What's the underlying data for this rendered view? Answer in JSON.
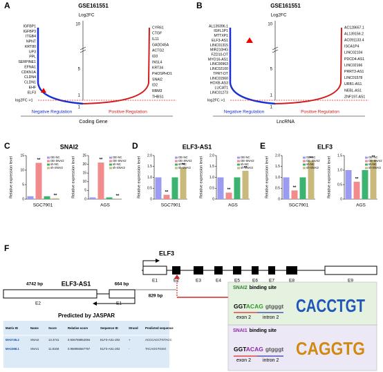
{
  "rank_panels": [
    {
      "letter": "A",
      "title": "GSE161551",
      "axis_label": "Log2FC",
      "ticks": [
        "10",
        "5",
        "1",
        "1"
      ],
      "threshold": "log2FC >1",
      "left_genes": [
        "IGFBP1",
        "IGFBP3",
        "ITGB4",
        "NPNT",
        "KRT80",
        "UP3",
        "PPL",
        "SERPINE1",
        "EFNA1",
        "CDKN1A",
        "CLDN4",
        "CLDN1",
        "EHF",
        "ELF3"
      ],
      "right_genes": [
        "CYR61",
        "CTGF",
        "IL11",
        "GADD45A",
        "ACTG2",
        "ID3",
        "INSL4",
        "KRT34",
        "PHOSPHO1",
        "SNAI2",
        "ID2",
        "RBM3",
        "THBS1"
      ],
      "negative": "Negative Regulation",
      "positive": "Positive Regulation",
      "xlabel": "Coding Gene"
    },
    {
      "letter": "B",
      "title": "GSE161551",
      "axis_label": "Log2FC",
      "ticks": [
        "10",
        "5",
        "1",
        "1"
      ],
      "threshold": "log2FC >1",
      "left_genes": [
        "AL139396.1",
        "IGFL1P1",
        "MTTXP1",
        "ELF3-AS1",
        "LINC01315",
        "MIR210HG",
        "FZD10-DT",
        "MYO16-AS1",
        "LINC00963",
        "LINC02100",
        "TPRT-DT",
        "LINC01560",
        "HOXB-AS3",
        "LUCAT1",
        "LINC01273"
      ],
      "right_genes": [
        "AC128657.1",
        "AL139156.2",
        "AC091133.4",
        "ISCA1P4",
        "LINC02104",
        "PDCD4-AS1",
        "LINC02166",
        "PRRT3-AS1",
        "LINC01578",
        "URB1-AS1",
        "NEBL-AS1",
        "ZNF197-AS1"
      ],
      "negative": "Negative Regulation",
      "positive": "Positive Regulation",
      "xlabel": "LncRNA"
    }
  ],
  "chart_data": [
    {
      "type": "bar",
      "panel_letter": "C",
      "title": "SNAI2",
      "ylabel": "Relative expression level",
      "series": [
        {
          "name": "OE-NC",
          "color": "#9b9bf2"
        },
        {
          "name": "OE-SNAI2",
          "color": "#f28c8c"
        },
        {
          "name": "sh-NC",
          "color": "#3cb371"
        },
        {
          "name": "sh-SNAI2",
          "color": "#c9b97d"
        }
      ],
      "groups": [
        {
          "category": "SGC7901",
          "values": [
            1,
            12.5,
            1,
            0.3
          ],
          "ylim": [
            0,
            15
          ],
          "yticks": [
            0,
            5,
            10,
            15
          ],
          "annotations": [
            {
              "index": 1,
              "label": "**"
            },
            {
              "index": 3,
              "label": "**"
            }
          ]
        },
        {
          "category": "AGS",
          "values": [
            1,
            21,
            1,
            0.3
          ],
          "ylim": [
            0,
            25
          ],
          "yticks": [
            0,
            5,
            10,
            15,
            20,
            25
          ],
          "annotations": [
            {
              "index": 1,
              "label": "**"
            },
            {
              "index": 3,
              "label": "**"
            }
          ]
        }
      ]
    },
    {
      "type": "bar",
      "panel_letter": "D",
      "title": "ELF3-AS1",
      "ylabel": "Relative expression level",
      "series": [
        {
          "name": "OE-NC",
          "color": "#9b9bf2"
        },
        {
          "name": "OE-SNAI2",
          "color": "#f28c8c"
        },
        {
          "name": "sh-NC",
          "color": "#3cb371"
        },
        {
          "name": "sh-SNAI2",
          "color": "#c9b97d"
        }
      ],
      "groups": [
        {
          "category": "SGC7901",
          "values": [
            1,
            0.2,
            1,
            1.45
          ],
          "ylim": [
            0,
            2
          ],
          "yticks": [
            0,
            0.5,
            {
              "value": 1,
              "label": "1.0"
            },
            1.5,
            {
              "value": 2,
              "label": "2.0"
            }
          ],
          "annotations": [
            {
              "index": 1,
              "label": "**"
            },
            {
              "index": 3,
              "label": "**"
            }
          ]
        },
        {
          "category": "AGS",
          "values": [
            1,
            0.3,
            1,
            1.3
          ],
          "ylim": [
            0,
            2
          ],
          "yticks": [
            0,
            0.5,
            {
              "value": 1,
              "label": "1.0"
            },
            1.5,
            {
              "value": 2,
              "label": "2.0"
            }
          ],
          "annotations": [
            {
              "index": 1,
              "label": "**"
            },
            {
              "index": 3,
              "label": "**"
            }
          ]
        }
      ]
    },
    {
      "type": "bar",
      "panel_letter": "E",
      "title": "ELF3",
      "ylabel": "Relative expression level",
      "series": [
        {
          "name": "OE-NC",
          "color": "#9b9bf2"
        },
        {
          "name": "OE-SNAI2",
          "color": "#f28c8c"
        },
        {
          "name": "sh-NC",
          "color": "#3cb371"
        },
        {
          "name": "sh-SNAI2",
          "color": "#c9b97d"
        }
      ],
      "groups": [
        {
          "category": "SGC7901",
          "values": [
            1,
            0.4,
            1,
            1.75
          ],
          "ylim": [
            0,
            2
          ],
          "yticks": [
            0,
            0.5,
            {
              "value": 1,
              "label": "1.0"
            },
            1.5,
            {
              "value": 2,
              "label": "2.0"
            }
          ],
          "annotations": [
            {
              "index": 1,
              "label": "**"
            },
            {
              "index": 3,
              "label": "**"
            }
          ]
        },
        {
          "category": "AGS",
          "values": [
            1,
            0.6,
            1,
            1.35
          ],
          "ylim": [
            0,
            1.5
          ],
          "yticks": [
            0,
            0.5,
            {
              "value": 1,
              "label": "1.0"
            },
            1.5
          ],
          "annotations": [
            {
              "index": 1,
              "label": "**"
            },
            {
              "index": 3,
              "label": "**"
            }
          ]
        }
      ]
    }
  ],
  "panel_f": {
    "letter": "F",
    "gene": "ELF3",
    "exons": [
      "E1",
      "E2",
      "E3",
      "E4",
      "E5",
      "E6",
      "E7",
      "E8",
      "E9"
    ],
    "antisense": "ELF3-AS1",
    "as_exons": [
      "E2",
      "E1"
    ],
    "len_e2": "4742 bp",
    "len_e1": "664 bp",
    "distance": "829 bp",
    "table_title": "Predicted by JASPAR",
    "table": {
      "header": [
        "Matrix ID",
        "Name",
        "Score",
        "Relative score",
        "Sequence ID",
        "Strand",
        "Predicted sequence"
      ],
      "rows": [
        [
          "MA0745.2",
          "SNAI2",
          "13.3741",
          "0.936769852084",
          "ELF3-AS1-202",
          "+",
          "ACCCACCTGTACC"
        ],
        [
          "MA1558.1",
          "SNAI1",
          "11.8168",
          "0.958955587757",
          "ELF3-AS1-202",
          "-",
          "TACAGGTGGG"
        ]
      ]
    },
    "sites": [
      {
        "factor": "SNAI2",
        "label": "binding site",
        "seq_a": "GGT",
        "seq_b": "ACAG",
        "seq_c": "gtgggt",
        "exon": "exon 2",
        "intron": "intron 2",
        "logo": "CACCTGT"
      },
      {
        "factor": "SNAI1",
        "label": "binding site",
        "seq_a": "GGT",
        "seq_b": "ACAG",
        "seq_c": "gtgggt",
        "exon": "exon 2",
        "intron": "intron 2",
        "logo": "CAGGTG"
      }
    ]
  }
}
